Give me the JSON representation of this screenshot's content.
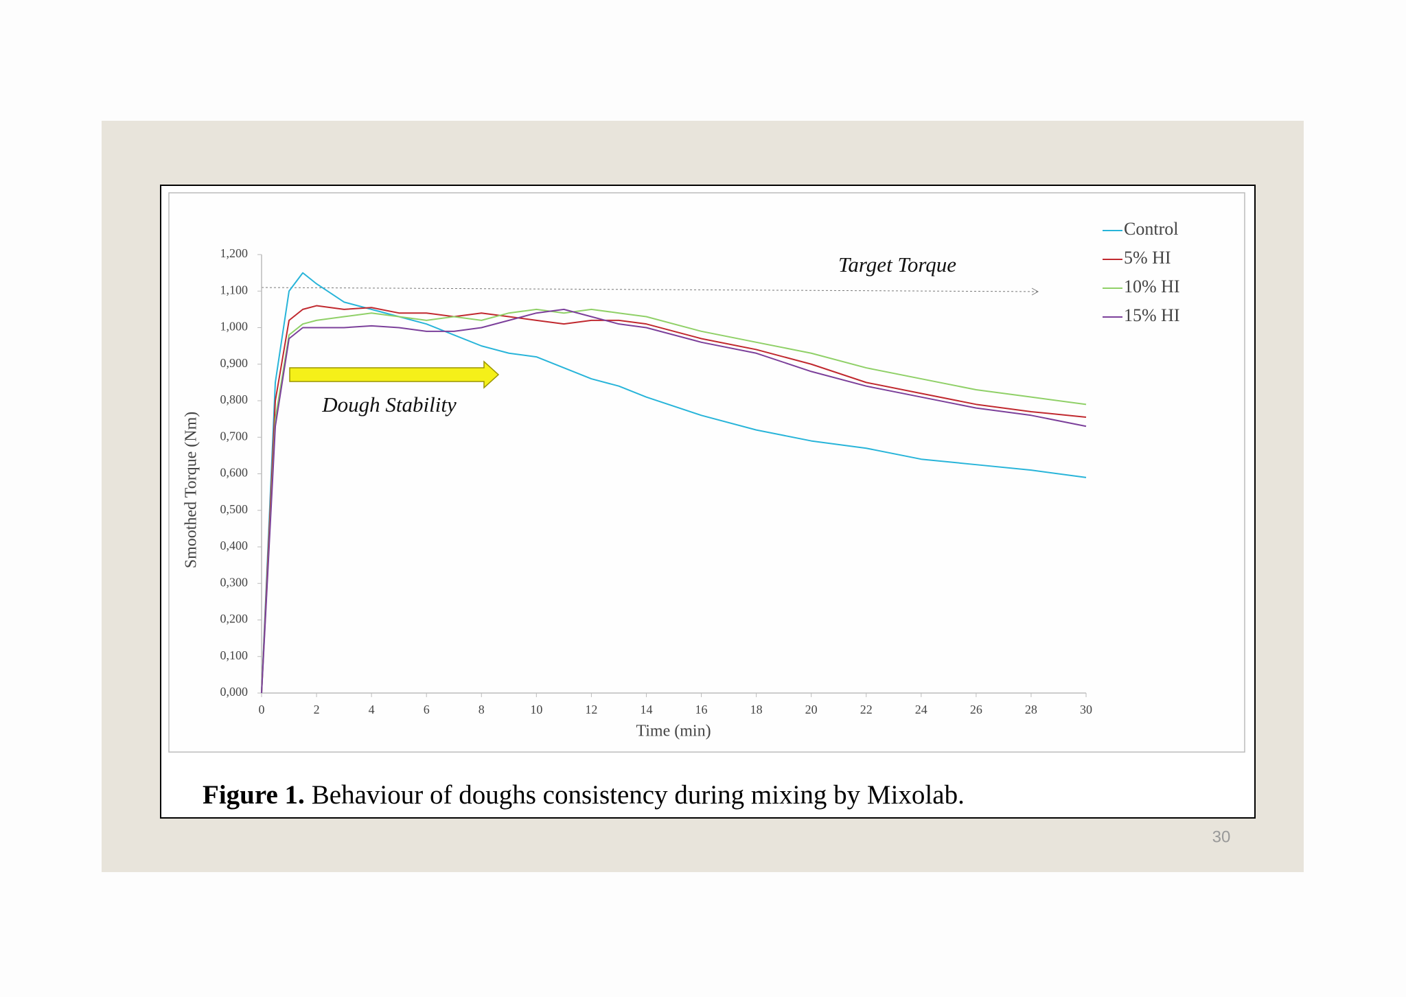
{
  "slide": {
    "caption_label": "Figure 1.",
    "caption_text": "Behaviour of doughs consistency during mixing by Mixolab.",
    "page_number": 30
  },
  "chart_data": {
    "type": "line",
    "x_label": "Time (min)",
    "y_label": "Smoothed Torque (Nm)",
    "annotations": [
      "Target Torque",
      "Dough Stability"
    ],
    "x": [
      0,
      0.5,
      1,
      1.5,
      2,
      3,
      4,
      5,
      6,
      7,
      8,
      9,
      10,
      11,
      12,
      13,
      14,
      16,
      18,
      20,
      22,
      24,
      26,
      28,
      30
    ],
    "series": [
      {
        "name": "Control",
        "color": "#27b4d9",
        "values": [
          0,
          0.85,
          1.1,
          1.15,
          1.12,
          1.07,
          1.05,
          1.03,
          1.01,
          0.98,
          0.95,
          0.93,
          0.92,
          0.89,
          0.86,
          0.84,
          0.81,
          0.76,
          0.72,
          0.69,
          0.67,
          0.64,
          0.625,
          0.61,
          0.59
        ]
      },
      {
        "name": "5% HI",
        "color": "#c0282e",
        "values": [
          0,
          0.8,
          1.02,
          1.05,
          1.06,
          1.05,
          1.055,
          1.04,
          1.04,
          1.03,
          1.04,
          1.03,
          1.02,
          1.01,
          1.02,
          1.02,
          1.01,
          0.97,
          0.94,
          0.9,
          0.85,
          0.82,
          0.79,
          0.77,
          0.755
        ]
      },
      {
        "name": "10% HI",
        "color": "#8fd067",
        "values": [
          0,
          0.75,
          0.98,
          1.01,
          1.02,
          1.03,
          1.04,
          1.03,
          1.02,
          1.03,
          1.02,
          1.04,
          1.05,
          1.04,
          1.05,
          1.04,
          1.03,
          0.99,
          0.96,
          0.93,
          0.89,
          0.86,
          0.83,
          0.81,
          0.79
        ]
      },
      {
        "name": "15% HI",
        "color": "#7b3f9a",
        "values": [
          0,
          0.73,
          0.97,
          1.0,
          1.0,
          1.0,
          1.005,
          1.0,
          0.99,
          0.99,
          1.0,
          1.02,
          1.04,
          1.05,
          1.03,
          1.01,
          1.0,
          0.96,
          0.93,
          0.88,
          0.84,
          0.81,
          0.78,
          0.76,
          0.73
        ]
      }
    ],
    "xlim": [
      0,
      30
    ],
    "xticks": [
      0,
      2,
      4,
      6,
      8,
      10,
      12,
      14,
      16,
      18,
      20,
      22,
      24,
      26,
      28,
      30
    ],
    "ylim": [
      0,
      1.2
    ],
    "yticks": [
      {
        "value": 0,
        "label": "0,000"
      },
      {
        "value": 0.1,
        "label": "0,100"
      },
      {
        "value": 0.2,
        "label": "0,200"
      },
      {
        "value": 0.3,
        "label": "0,300"
      },
      {
        "value": 0.4,
        "label": "0,400"
      },
      {
        "value": 0.5,
        "label": "0,500"
      },
      {
        "value": 0.6,
        "label": "0,600"
      },
      {
        "value": 0.7,
        "label": "0,700"
      },
      {
        "value": 0.8,
        "label": "0,800"
      },
      {
        "value": 0.9,
        "label": "0,900"
      },
      {
        "value": 1,
        "label": "1,000"
      },
      {
        "value": 1.1,
        "label": "1,100"
      },
      {
        "value": 1.2,
        "label": "1,200"
      }
    ],
    "grid": false,
    "legend": "right"
  }
}
